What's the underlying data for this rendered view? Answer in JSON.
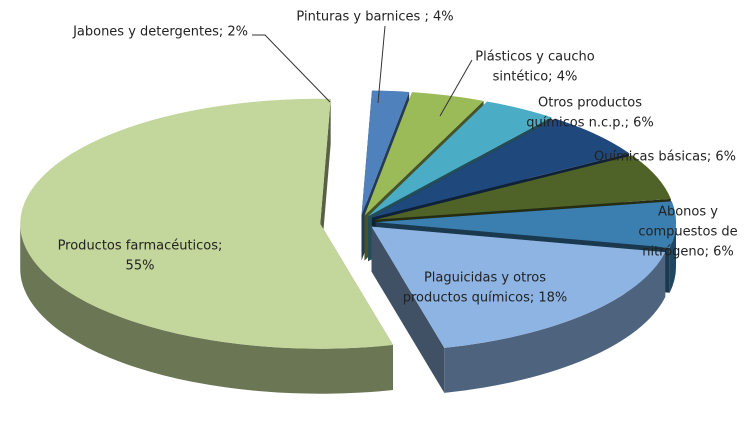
{
  "chart_data": {
    "type": "pie3d",
    "values": [
      2,
      4,
      4,
      6,
      6,
      6,
      18,
      55
    ],
    "value_labels": [
      [
        "Jabones y detergentes; 2%"
      ],
      [
        "Pinturas y barnices ; 4%"
      ],
      [
        "Plásticos y caucho",
        "sintético; 4%"
      ],
      [
        "Otros productos",
        "químicos n.c.p.; 6%"
      ],
      [
        "Químicas básicas; 6%"
      ],
      [
        "Abonos y",
        "compuestos de",
        "nitrógeno; 6%"
      ],
      [
        "Plaguicidas y otros",
        "productos químicos; 18%"
      ],
      [
        "Productos farmacéuticos;",
        "55%"
      ]
    ],
    "colors": [
      "#4f81bd",
      "#9bbb59",
      "#4bacc6",
      "#1f497d",
      "#4f6228",
      "#3a7fb0",
      "#8eb4e3",
      "#c3d69b"
    ]
  }
}
